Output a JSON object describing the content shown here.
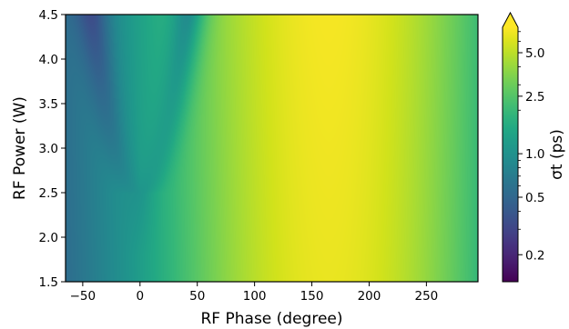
{
  "chart_data": {
    "type": "heatmap",
    "title": "",
    "xlabel": "RF Phase (degree)",
    "ylabel": "RF Power (W)",
    "xlim": [
      -65,
      295
    ],
    "ylim": [
      1.5,
      4.5
    ],
    "x_ticks": [
      {
        "value": -50,
        "label": "−50"
      },
      {
        "value": 0,
        "label": "0"
      },
      {
        "value": 50,
        "label": "50"
      },
      {
        "value": 100,
        "label": "100"
      },
      {
        "value": 150,
        "label": "150"
      },
      {
        "value": 200,
        "label": "200"
      },
      {
        "value": 250,
        "label": "250"
      }
    ],
    "y_ticks": [
      {
        "value": 1.5,
        "label": "1.5"
      },
      {
        "value": 2.0,
        "label": "2.0"
      },
      {
        "value": 2.5,
        "label": "2.5"
      },
      {
        "value": 3.0,
        "label": "3.0"
      },
      {
        "value": 3.5,
        "label": "3.5"
      },
      {
        "value": 4.0,
        "label": "4.0"
      },
      {
        "value": 4.5,
        "label": "4.5"
      }
    ],
    "colorbar": {
      "label": "σt (ps)",
      "scale": "log",
      "range": [
        0.13,
        7.5
      ],
      "extend": "max",
      "colormap": "viridis",
      "ticks": [
        {
          "value": 0.2,
          "label": "0.2"
        },
        {
          "value": 0.5,
          "label": "0.5"
        },
        {
          "value": 1.0,
          "label": "1.0"
        },
        {
          "value": 2.5,
          "label": "2.5"
        },
        {
          "value": 5.0,
          "label": "5.0"
        }
      ],
      "minor_ticks": [
        0.3,
        0.4,
        0.6,
        0.7,
        0.8,
        0.9,
        2,
        3,
        4,
        6,
        7
      ]
    },
    "grid": false,
    "surface_model": {
      "description": "sigma_t(phase, power)",
      "base_level_ps": 0.13,
      "peak_level_ps": 7.0,
      "peak_phase_deg": 165,
      "valley_center_phase_deg": 0,
      "valley_min_power_w": 2.5,
      "valley_opening_deg_at_4_5w": 42
    }
  }
}
